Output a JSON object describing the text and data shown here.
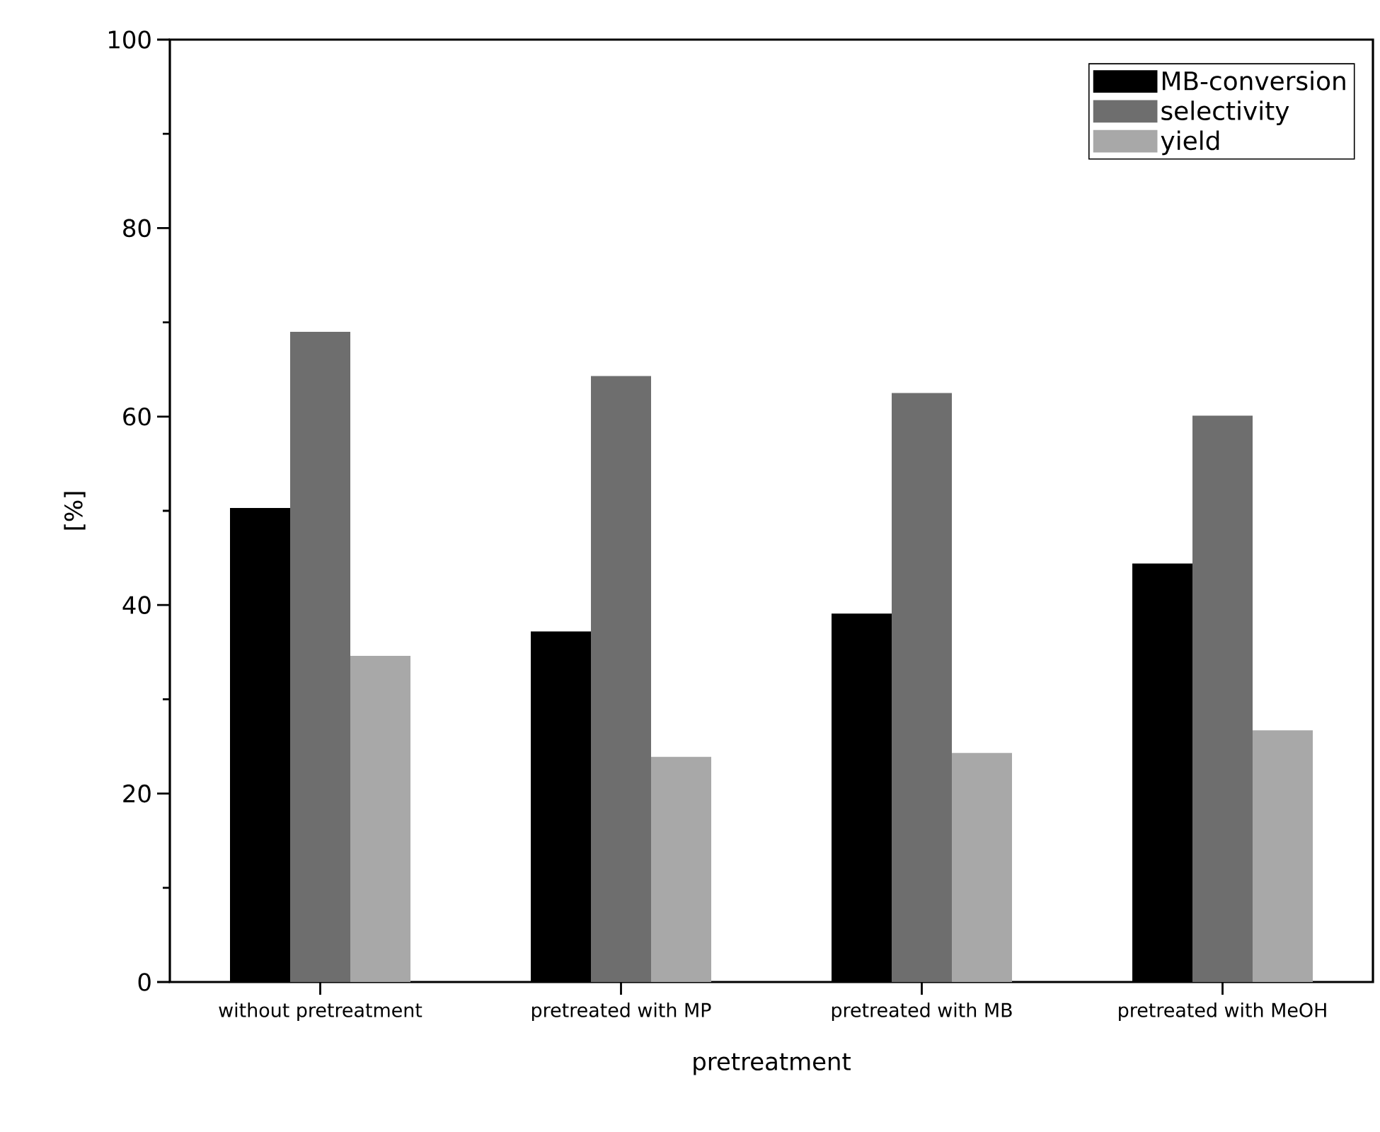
{
  "chart_data": {
    "type": "bar",
    "xlabel": "pretreatment",
    "ylabel": "[%]",
    "categories": [
      "without pretreatment",
      "pretreated with MP",
      "pretreated with MB",
      "pretreated with MeOH"
    ],
    "series": [
      {
        "name": "MB-conversion",
        "color": "#000000",
        "values": [
          50.3,
          37.2,
          39.1,
          44.4
        ]
      },
      {
        "name": "selectivity",
        "color": "#6e6e6e",
        "values": [
          69.0,
          64.3,
          62.5,
          60.1
        ]
      },
      {
        "name": "yield",
        "color": "#a8a8a8",
        "values": [
          34.6,
          23.9,
          24.3,
          26.7
        ]
      }
    ],
    "ylim": [
      0,
      100
    ],
    "yticks": [
      0,
      20,
      40,
      60,
      80,
      100
    ],
    "grid": false,
    "legend": "top right"
  }
}
